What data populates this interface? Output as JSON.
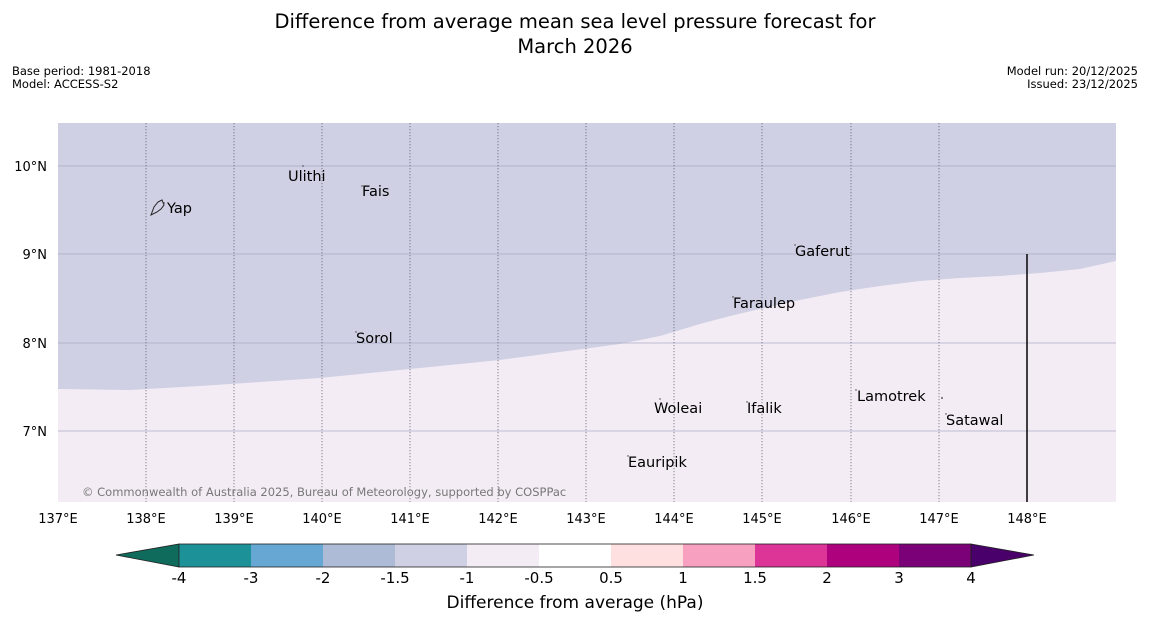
{
  "title": {
    "line1": "Difference from average mean sea level pressure forecast for",
    "line2": "March 2026"
  },
  "meta_left": {
    "base_period": "Base period: 1981-2018",
    "model": "Model: ACCESS-S2"
  },
  "meta_right": {
    "model_run": "Model run: 20/12/2025",
    "issued": "Issued: 23/12/2025"
  },
  "map": {
    "lon_labels": [
      "137°E",
      "138°E",
      "139°E",
      "140°E",
      "141°E",
      "142°E",
      "143°E",
      "144°E",
      "145°E",
      "146°E",
      "147°E",
      "148°E"
    ],
    "lat_labels": [
      "10°N",
      "9°N",
      "8°N",
      "7°N"
    ],
    "copyright": "© Commonwealth of Australia 2025, Bureau of Meteorology, supported by COSPPac",
    "regions": {
      "upper_color": "#cfd0e3",
      "lower_color": "#f4ecf5"
    },
    "places": [
      {
        "name": "Yap"
      },
      {
        "name": "Ulithi"
      },
      {
        "name": "Fais"
      },
      {
        "name": "Gaferut"
      },
      {
        "name": "Faraulep"
      },
      {
        "name": "Sorol"
      },
      {
        "name": "Lamotrek"
      },
      {
        "name": "Woleai"
      },
      {
        "name": "Ifalik"
      },
      {
        "name": "Satawal"
      },
      {
        "name": "Eauripik"
      }
    ]
  },
  "colorbar": {
    "ticks": [
      "-4",
      "-3",
      "-2",
      "-1.5",
      "-1",
      "-0.5",
      "0.5",
      "1",
      "1.5",
      "2",
      "3",
      "4"
    ],
    "colors": [
      "#0f6b5c",
      "#1c9197",
      "#66a8d3",
      "#aebbd6",
      "#cfd0e3",
      "#f4ecf5",
      "#ffffff",
      "#fee0e0",
      "#f8a0c0",
      "#dd3497",
      "#ae017e",
      "#7a0177",
      "#49006a"
    ],
    "label": "Difference from average (hPa)"
  }
}
